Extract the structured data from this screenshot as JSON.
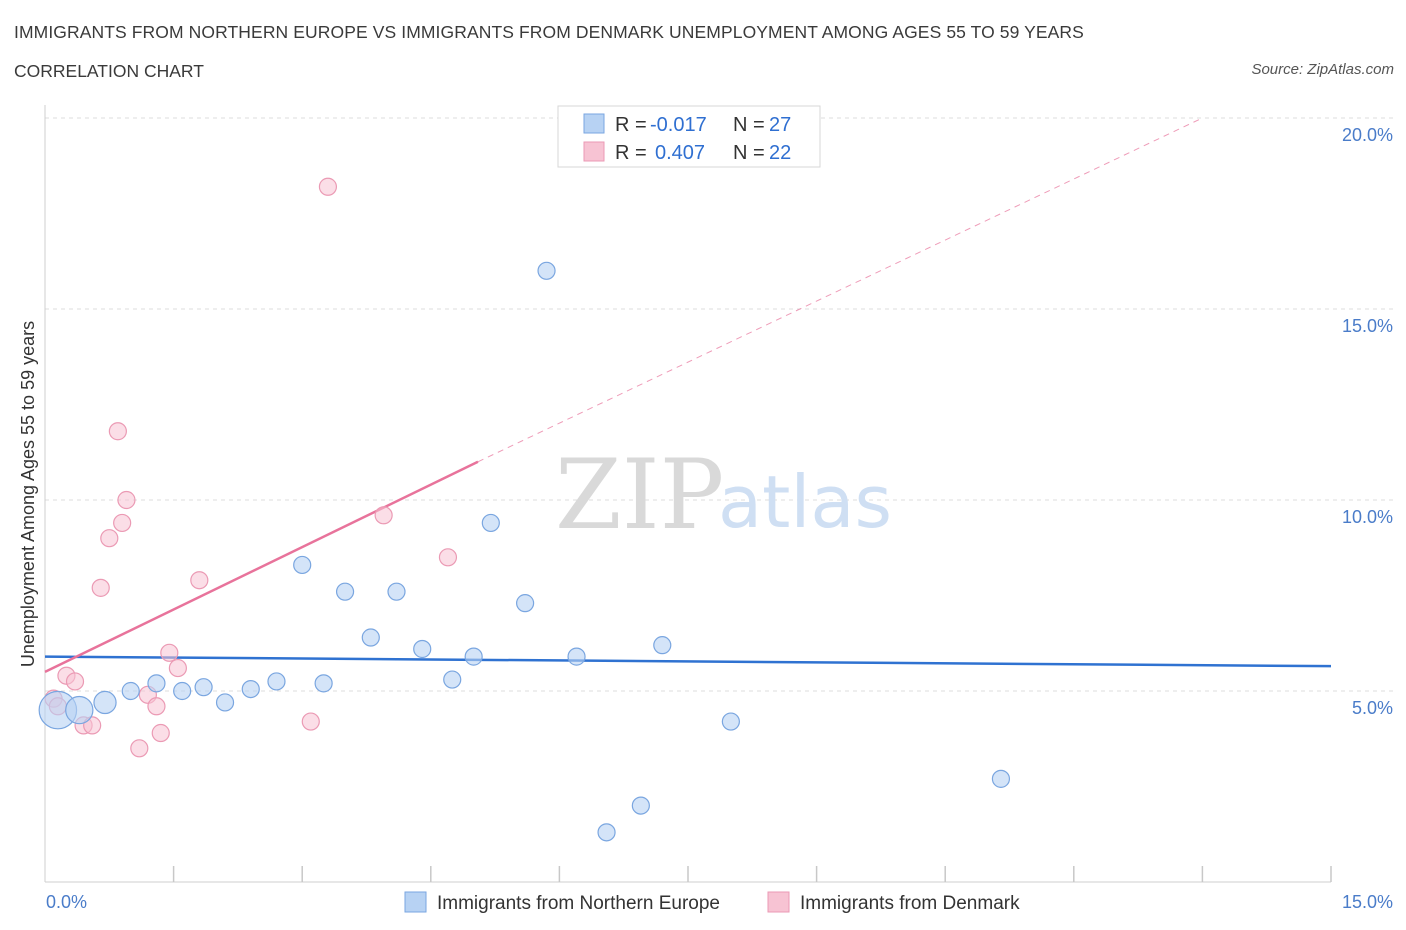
{
  "title": "IMMIGRANTS FROM NORTHERN EUROPE VS IMMIGRANTS FROM DENMARK UNEMPLOYMENT AMONG AGES 55 TO 59 YEARS",
  "subtitle": "CORRELATION CHART",
  "source": "Source: ZipAtlas.com",
  "watermark": {
    "zip": "ZIP",
    "atlas": "atlas"
  },
  "legend_stats": [
    {
      "r_label": "R =",
      "r_value": "-0.017",
      "n_label": "N =",
      "n_value": "27"
    },
    {
      "r_label": "R =",
      "r_value": "0.407",
      "n_label": "N =",
      "n_value": "22"
    }
  ],
  "colors": {
    "blue_fill": "#b7d2f3",
    "blue_stroke": "#7aa6e0",
    "blue_line": "#2f72d1",
    "pink_fill": "#f7c3d3",
    "pink_stroke": "#eb9ab4",
    "pink_line": "#e8739b",
    "grid": "#dcdcdc",
    "tick_text": "#4a7cc9"
  },
  "chart_data": {
    "type": "scatter",
    "ylabel": "Unemployment Among Ages 55 to 59 years",
    "xlim": [
      0,
      15
    ],
    "ylim": [
      0,
      20
    ],
    "x_tick_labels": [
      "0.0%",
      "15.0%"
    ],
    "y_ticks": [
      5,
      10,
      15,
      20
    ],
    "y_tick_labels": [
      "5.0%",
      "10.0%",
      "15.0%",
      "20.0%"
    ],
    "grid": true,
    "series": [
      {
        "name": "Immigrants from Northern Europe",
        "color": "#b7d2f3",
        "points": [
          [
            0.15,
            4.5
          ],
          [
            0.4,
            4.5
          ],
          [
            0.7,
            4.7
          ],
          [
            1.0,
            5.0
          ],
          [
            1.3,
            5.2
          ],
          [
            1.6,
            5.0
          ],
          [
            1.85,
            5.1
          ],
          [
            2.1,
            4.7
          ],
          [
            2.4,
            5.05
          ],
          [
            2.7,
            5.25
          ],
          [
            3.0,
            8.3
          ],
          [
            3.25,
            5.2
          ],
          [
            3.5,
            7.6
          ],
          [
            3.8,
            6.4
          ],
          [
            4.1,
            7.6
          ],
          [
            4.4,
            6.1
          ],
          [
            4.75,
            5.3
          ],
          [
            5.0,
            5.9
          ],
          [
            5.2,
            9.4
          ],
          [
            5.6,
            7.3
          ],
          [
            5.85,
            16.0
          ],
          [
            6.2,
            5.9
          ],
          [
            6.55,
            1.3
          ],
          [
            6.95,
            2.0
          ],
          [
            7.2,
            6.2
          ],
          [
            8.0,
            4.2
          ],
          [
            11.15,
            2.7
          ]
        ],
        "sizes": [
          2.2,
          1.6,
          1.3,
          1,
          1,
          1,
          1,
          1,
          1,
          1,
          1,
          1,
          1,
          1,
          1,
          1,
          1,
          1,
          1,
          1,
          1,
          1,
          1,
          1,
          1,
          1,
          1
        ],
        "trend": {
          "x": [
            0,
            15
          ],
          "y": [
            5.9,
            5.65
          ]
        }
      },
      {
        "name": "Immigrants from Denmark",
        "color": "#f7c3d3",
        "points": [
          [
            0.1,
            4.8
          ],
          [
            0.15,
            4.6
          ],
          [
            0.25,
            5.4
          ],
          [
            0.35,
            5.25
          ],
          [
            0.45,
            4.1
          ],
          [
            0.55,
            4.1
          ],
          [
            0.65,
            7.7
          ],
          [
            0.75,
            9.0
          ],
          [
            0.85,
            11.8
          ],
          [
            0.9,
            9.4
          ],
          [
            0.95,
            10.0
          ],
          [
            1.1,
            3.5
          ],
          [
            1.2,
            4.9
          ],
          [
            1.3,
            4.6
          ],
          [
            1.35,
            3.9
          ],
          [
            1.45,
            6.0
          ],
          [
            1.55,
            5.6
          ],
          [
            1.8,
            7.9
          ],
          [
            3.1,
            4.2
          ],
          [
            3.3,
            18.2
          ],
          [
            3.95,
            9.6
          ],
          [
            4.7,
            8.5
          ]
        ],
        "trend": {
          "x": [
            0,
            5.05
          ],
          "y": [
            5.5,
            11.0
          ]
        },
        "trend_extension": {
          "x": [
            5.05,
            13.5
          ],
          "y": [
            11.0,
            20.0
          ]
        }
      }
    ]
  }
}
